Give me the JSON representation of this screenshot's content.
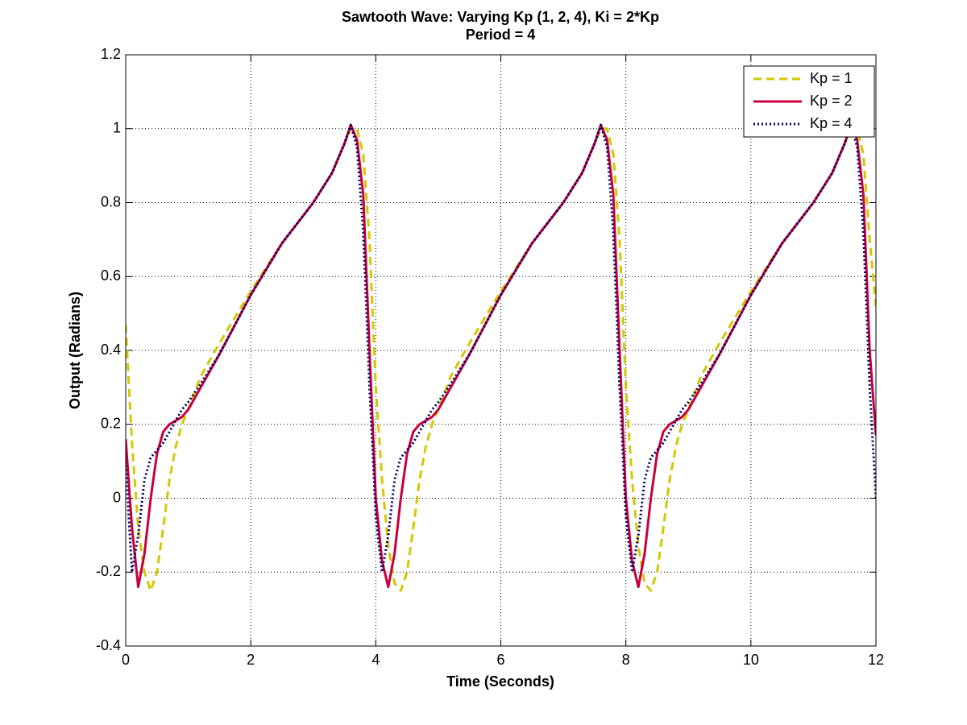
{
  "chart_data": {
    "type": "line",
    "title": "Sawtooth Wave: Varying Kp (1, 2, 4), Ki = 2*Kp",
    "subtitle": "Period = 4",
    "xlabel": "Time (Seconds)",
    "ylabel": "Output (Radians)",
    "x": [
      0,
      0.1,
      0.2,
      0.3,
      0.4,
      0.5,
      0.6,
      0.7,
      0.8,
      0.9,
      1,
      1.2,
      1.5,
      2,
      2.5,
      3,
      3.3,
      3.5,
      3.6,
      3.7,
      3.8,
      3.9,
      4,
      4.1,
      4.2,
      4.3,
      4.4,
      4.5,
      4.6,
      4.7,
      4.8,
      4.9,
      5,
      5.2,
      5.5,
      6,
      6.5,
      7,
      7.3,
      7.5,
      7.6,
      7.7,
      7.8,
      7.9,
      8,
      8.1,
      8.2,
      8.3,
      8.4,
      8.5,
      8.6,
      8.7,
      8.8,
      8.9,
      9,
      9.2,
      9.5,
      10,
      10.5,
      11,
      11.3,
      11.5,
      11.6,
      11.7,
      11.8,
      11.9,
      12
    ],
    "series": [
      {
        "name": "Kp = 1",
        "color": "#d4c800",
        "linestyle": "dashed",
        "values": [
          0.47,
          0.15,
          -0.08,
          -0.2,
          -0.25,
          -0.2,
          -0.08,
          0.05,
          0.14,
          0.2,
          0.24,
          0.33,
          0.42,
          0.56,
          0.69,
          0.8,
          0.88,
          0.96,
          1.0,
          1.0,
          0.93,
          0.7,
          0.3,
          0.05,
          -0.13,
          -0.23,
          -0.25,
          -0.2,
          -0.08,
          0.05,
          0.14,
          0.2,
          0.24,
          0.33,
          0.42,
          0.56,
          0.69,
          0.8,
          0.88,
          0.96,
          1.0,
          1.0,
          0.93,
          0.7,
          0.3,
          0.05,
          -0.13,
          -0.23,
          -0.25,
          -0.2,
          -0.08,
          0.05,
          0.14,
          0.2,
          0.24,
          0.33,
          0.42,
          0.56,
          0.69,
          0.8,
          0.88,
          0.96,
          1.0,
          1.0,
          0.93,
          0.7,
          0.52
        ]
      },
      {
        "name": "Kp = 2",
        "color": "#c8003c",
        "linestyle": "solid",
        "values": [
          0.16,
          -0.08,
          -0.24,
          -0.15,
          0.0,
          0.12,
          0.18,
          0.2,
          0.21,
          0.22,
          0.24,
          0.3,
          0.39,
          0.55,
          0.69,
          0.8,
          0.88,
          0.96,
          1.01,
          0.97,
          0.82,
          0.4,
          0.0,
          -0.17,
          -0.24,
          -0.15,
          0.0,
          0.12,
          0.18,
          0.2,
          0.21,
          0.22,
          0.24,
          0.3,
          0.39,
          0.55,
          0.69,
          0.8,
          0.88,
          0.96,
          1.01,
          0.97,
          0.82,
          0.4,
          0.0,
          -0.17,
          -0.24,
          -0.15,
          0.0,
          0.12,
          0.18,
          0.2,
          0.21,
          0.22,
          0.24,
          0.3,
          0.39,
          0.55,
          0.69,
          0.8,
          0.88,
          0.96,
          1.01,
          0.97,
          0.82,
          0.4,
          0.17
        ]
      },
      {
        "name": "Kp = 4",
        "color": "#000066",
        "linestyle": "dotted",
        "values": [
          0.1,
          -0.2,
          -0.1,
          0.05,
          0.11,
          0.13,
          0.15,
          0.18,
          0.21,
          0.24,
          0.26,
          0.31,
          0.39,
          0.55,
          0.69,
          0.8,
          0.88,
          0.96,
          1.01,
          0.95,
          0.72,
          0.3,
          -0.05,
          -0.2,
          -0.1,
          0.05,
          0.11,
          0.13,
          0.15,
          0.18,
          0.21,
          0.24,
          0.26,
          0.31,
          0.39,
          0.55,
          0.69,
          0.8,
          0.88,
          0.96,
          1.01,
          0.95,
          0.72,
          0.3,
          -0.05,
          -0.2,
          -0.1,
          0.05,
          0.11,
          0.13,
          0.15,
          0.18,
          0.21,
          0.24,
          0.26,
          0.31,
          0.39,
          0.55,
          0.69,
          0.8,
          0.88,
          0.96,
          1.01,
          0.95,
          0.72,
          0.3,
          0.0
        ]
      }
    ],
    "xlim": [
      0,
      12
    ],
    "xticks": [
      0,
      2,
      4,
      6,
      8,
      10,
      12
    ],
    "ylim": [
      -0.4,
      1.2
    ],
    "yticks": [
      -0.4,
      -0.2,
      0,
      0.2,
      0.4,
      0.6,
      0.8,
      1,
      1.2
    ],
    "grid": true,
    "legend": "top-right"
  }
}
